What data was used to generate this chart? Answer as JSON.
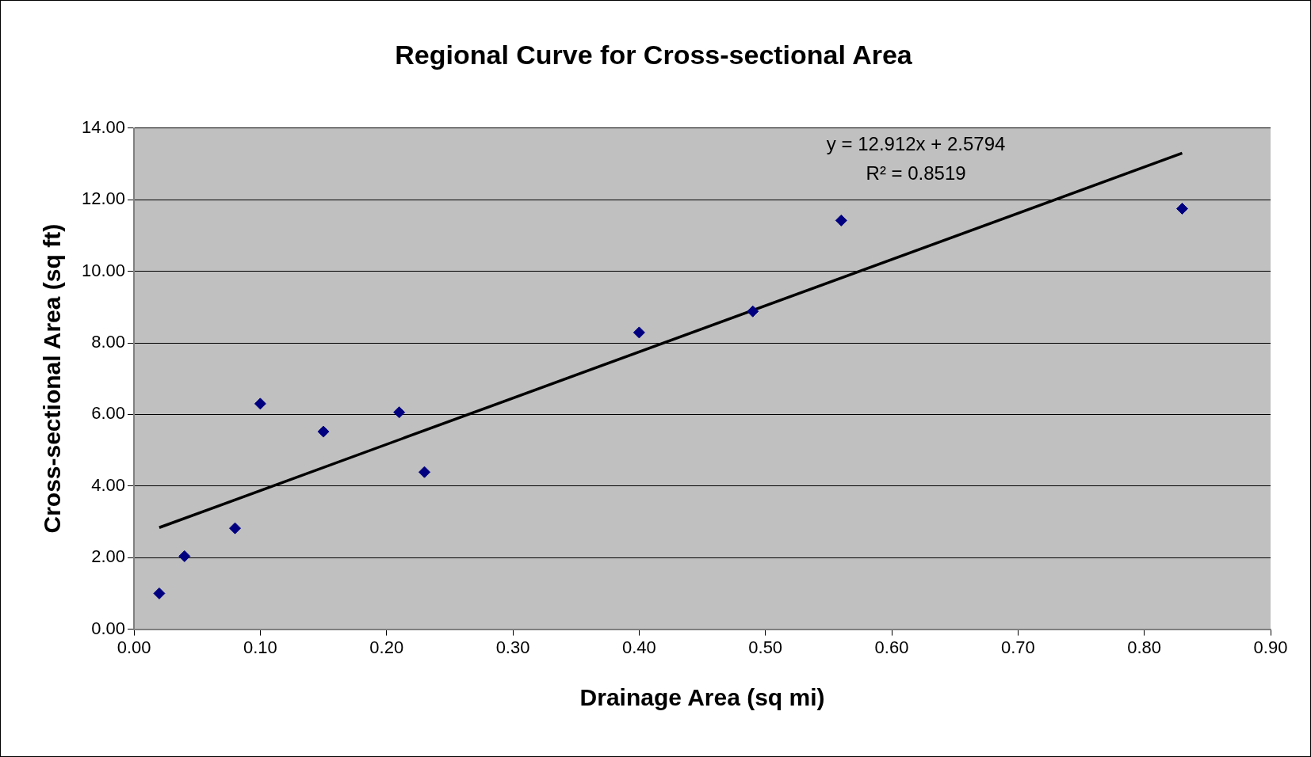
{
  "chart_data": {
    "type": "scatter",
    "title": "Regional Curve for Cross-sectional Area",
    "xlabel": "Drainage Area (sq mi)",
    "ylabel": "Cross-sectional Area (sq ft)",
    "series": [
      {
        "type": "scatter",
        "color": "#000080",
        "marker": "diamond",
        "x": [
          0.02,
          0.04,
          0.08,
          0.1,
          0.15,
          0.21,
          0.23,
          0.4,
          0.49,
          0.56,
          0.83
        ],
        "values": [
          1.0,
          2.04,
          2.82,
          6.3,
          5.52,
          6.06,
          4.39,
          8.29,
          8.88,
          11.42,
          11.75
        ]
      },
      {
        "type": "line",
        "color": "#000000",
        "marker": "none",
        "x": [
          0.02,
          0.83
        ],
        "values": [
          2.84,
          13.3
        ]
      }
    ],
    "xlim": [
      0,
      0.9
    ],
    "xticks": [
      {
        "value": 0,
        "label": "0.00"
      },
      {
        "value": 0.1,
        "label": "0.10"
      },
      {
        "value": 0.2,
        "label": "0.20"
      },
      {
        "value": 0.3,
        "label": "0.30"
      },
      {
        "value": 0.4,
        "label": "0.40"
      },
      {
        "value": 0.5,
        "label": "0.50"
      },
      {
        "value": 0.6,
        "label": "0.60"
      },
      {
        "value": 0.7,
        "label": "0.70"
      },
      {
        "value": 0.8,
        "label": "0.80"
      },
      {
        "value": 0.9,
        "label": "0.90"
      }
    ],
    "ylim": [
      0,
      14
    ],
    "yticks": [
      {
        "value": 0,
        "label": "0.00"
      },
      {
        "value": 2,
        "label": "2.00"
      },
      {
        "value": 4,
        "label": "4.00"
      },
      {
        "value": 6,
        "label": "6.00"
      },
      {
        "value": 8,
        "label": "8.00"
      },
      {
        "value": 10,
        "label": "10.00"
      },
      {
        "value": 12,
        "label": "12.00"
      },
      {
        "value": 14,
        "label": "14.00"
      }
    ],
    "annotations": [
      "y = 12.912x + 2.5794",
      "R² = 0.8519"
    ],
    "grid": "y",
    "legend": false,
    "line_style": "solid"
  }
}
